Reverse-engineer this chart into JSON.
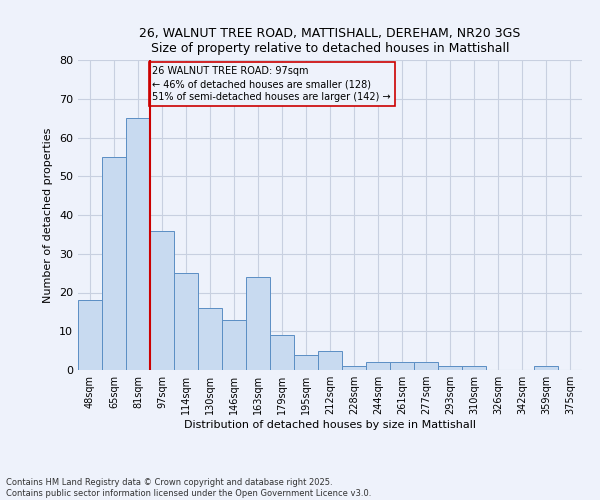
{
  "title_line1": "26, WALNUT TREE ROAD, MATTISHALL, DEREHAM, NR20 3GS",
  "title_line2": "Size of property relative to detached houses in Mattishall",
  "xlabel": "Distribution of detached houses by size in Mattishall",
  "ylabel": "Number of detached properties",
  "footnote": "Contains HM Land Registry data © Crown copyright and database right 2025.\nContains public sector information licensed under the Open Government Licence v3.0.",
  "categories": [
    "48sqm",
    "65sqm",
    "81sqm",
    "97sqm",
    "114sqm",
    "130sqm",
    "146sqm",
    "163sqm",
    "179sqm",
    "195sqm",
    "212sqm",
    "228sqm",
    "244sqm",
    "261sqm",
    "277sqm",
    "293sqm",
    "310sqm",
    "326sqm",
    "342sqm",
    "359sqm",
    "375sqm"
  ],
  "values": [
    18,
    55,
    65,
    36,
    25,
    16,
    13,
    24,
    9,
    4,
    5,
    1,
    2,
    2,
    2,
    1,
    1,
    0,
    0,
    1,
    0
  ],
  "bar_color": "#c8daf0",
  "bar_edge_color": "#5b8ec4",
  "grid_color": "#c8d0e0",
  "background_color": "#eef2fb",
  "property_line_x": 3,
  "property_line_color": "#cc0000",
  "annotation_text": "26 WALNUT TREE ROAD: 97sqm\n← 46% of detached houses are smaller (128)\n51% of semi-detached houses are larger (142) →",
  "annotation_box_color": "#cc0000",
  "ylim": [
    0,
    80
  ],
  "yticks": [
    0,
    10,
    20,
    30,
    40,
    50,
    60,
    70,
    80
  ]
}
